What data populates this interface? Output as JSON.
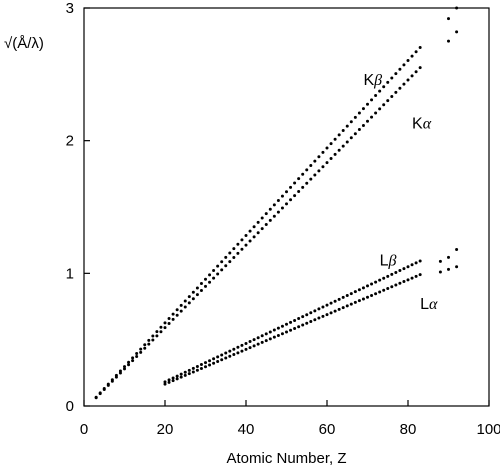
{
  "chart_data": {
    "type": "scatter",
    "title": "",
    "xlabel": "Atomic Number, Z",
    "ylabel": "√(Å/λ)",
    "xlim": [
      0,
      100
    ],
    "ylim": [
      0,
      3
    ],
    "xticks": [
      0,
      20,
      40,
      60,
      80,
      100
    ],
    "yticks": [
      0,
      1,
      2,
      3
    ],
    "grid": false,
    "series": [
      {
        "name": "Kβ",
        "label_main": "K",
        "label_greek": "β",
        "z_range": [
          3,
          83
        ],
        "coeff": 0.03296,
        "offset": 1.0,
        "extra_points": [
          {
            "x": 92,
            "y": 3.0
          },
          {
            "x": 90,
            "y": 2.92
          }
        ]
      },
      {
        "name": "Kα",
        "label_main": "K",
        "label_greek": "α",
        "z_range": [
          3,
          83
        ],
        "coeff": 0.0311,
        "offset": 1.0,
        "extra_points": [
          {
            "x": 92,
            "y": 2.82
          },
          {
            "x": 90,
            "y": 2.75
          }
        ]
      },
      {
        "name": "Lβ",
        "label_main": "L",
        "label_greek": "β",
        "z_range": [
          20,
          83
        ],
        "coeff": 0.01446,
        "offset": 7.4,
        "extra_points": [
          {
            "x": 88,
            "y": 1.09
          },
          {
            "x": 90,
            "y": 1.12
          },
          {
            "x": 92,
            "y": 1.18
          }
        ]
      },
      {
        "name": "Lα",
        "label_main": "L",
        "label_greek": "α",
        "z_range": [
          20,
          83
        ],
        "coeff": 0.0131,
        "offset": 7.4,
        "extra_points": [
          {
            "x": 88,
            "y": 1.01
          },
          {
            "x": 90,
            "y": 1.03
          },
          {
            "x": 92,
            "y": 1.05
          }
        ]
      }
    ],
    "annotations": [
      {
        "series": "Kβ",
        "x": 69,
        "y": 2.42
      },
      {
        "series": "Kα",
        "x": 81,
        "y": 2.09
      },
      {
        "series": "Lβ",
        "x": 73,
        "y": 1.06
      },
      {
        "series": "Lα",
        "x": 83,
        "y": 0.73
      }
    ]
  }
}
